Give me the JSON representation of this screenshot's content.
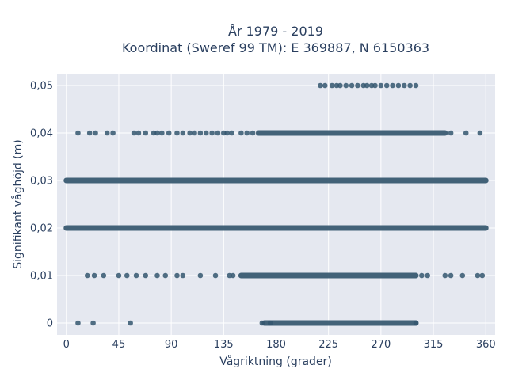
{
  "chart_data": {
    "type": "scatter",
    "title_line1": "År 1979 - 2019",
    "title_line2": "Koordinat (Sweref 99 TM): E 369887, N 6150363",
    "xlabel": "Vågriktning (grader)",
    "ylabel": "Signifikant våghöjd (m)",
    "xlim": [
      -8,
      368
    ],
    "ylim": [
      -0.0025,
      0.0525
    ],
    "x_ticks": [
      0,
      45,
      90,
      135,
      180,
      225,
      270,
      315,
      360
    ],
    "x_tick_labels": [
      "0",
      "45",
      "90",
      "135",
      "180",
      "225",
      "270",
      "315",
      "360"
    ],
    "y_ticks": [
      0,
      0.01,
      0.02,
      0.03,
      0.04,
      0.05
    ],
    "y_tick_labels": [
      "0",
      "0,01",
      "0,02",
      "0,03",
      "0,04",
      "0,05"
    ],
    "grid": true,
    "colors": {
      "marker": "#34566e",
      "plot_bg": "#e5e8f0",
      "grid": "#ffffff",
      "text": "#2a3f5f"
    },
    "rows": [
      {
        "y": 0.0,
        "dense": [
          [
            170,
            300
          ]
        ],
        "sparse": [
          10,
          23,
          55,
          168,
          175,
          300
        ]
      },
      {
        "y": 0.01,
        "dense": [
          [
            150,
            300
          ]
        ],
        "sparse": [
          18,
          24,
          32,
          45,
          52,
          60,
          68,
          78,
          85,
          95,
          100,
          115,
          128,
          140,
          143,
          305,
          310,
          325,
          330,
          340,
          353,
          357
        ]
      },
      {
        "y": 0.02,
        "dense": [
          [
            0,
            360
          ]
        ],
        "sparse": []
      },
      {
        "y": 0.03,
        "dense": [
          [
            0,
            360
          ]
        ],
        "sparse": []
      },
      {
        "y": 0.04,
        "dense": [
          [
            165,
            325
          ]
        ],
        "sparse": [
          10,
          20,
          25,
          35,
          40,
          58,
          62,
          68,
          75,
          78,
          82,
          88,
          95,
          100,
          106,
          110,
          115,
          120,
          125,
          130,
          135,
          138,
          142,
          150,
          155,
          160,
          330,
          343,
          355
        ]
      },
      {
        "y": 0.05,
        "dense": [],
        "sparse": [
          218,
          222,
          228,
          232,
          235,
          240,
          245,
          250,
          255,
          258,
          262,
          265,
          270,
          275,
          280,
          285,
          290,
          295,
          300
        ]
      }
    ]
  }
}
